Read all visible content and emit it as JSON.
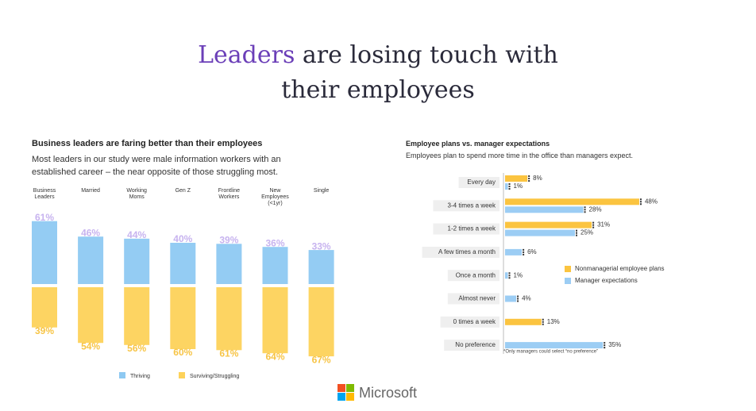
{
  "header": {
    "highlight": "Leaders",
    "line1": "are losing touch with",
    "line2": "their employees"
  },
  "chart_data": [
    {
      "type": "stacked-column",
      "title": "Business leaders are faring better than their employees",
      "subtitle": "Most leaders in our study were male information workers with an established career – the near opposite of those struggling most.",
      "categories": [
        "Business Leaders",
        "Married",
        "Working Moms",
        "Gen Z",
        "Frontline Workers",
        "New Employees (<1yr)",
        "Single"
      ],
      "series": [
        {
          "name": "Thriving",
          "color": "#8ec9f2",
          "label_color": "#c7b3ef",
          "values": [
            61,
            46,
            44,
            40,
            39,
            36,
            33
          ],
          "value_labels": [
            "61%",
            "46%",
            "44%",
            "40%",
            "39%",
            "36%",
            "33%"
          ]
        },
        {
          "name": "Surviving/Struggling",
          "color": "#fdd25a",
          "label_color": "#f7c445",
          "values": [
            39,
            54,
            56,
            60,
            61,
            64,
            67
          ],
          "value_labels": [
            "39%",
            "54%",
            "56%",
            "60%",
            "61%",
            "64%",
            "67%"
          ]
        }
      ]
    },
    {
      "type": "grouped-hbar",
      "title": "Employee plans vs. manager expectations",
      "subtitle": "Employees plan to spend more time in the office than managers expect.",
      "categories": [
        "Every day",
        "3-4 times a week",
        "1-2 times a week",
        "A few times a month",
        "Once a month",
        "Almost never",
        "0 times a week",
        "No preference"
      ],
      "series": [
        {
          "name": "Nonmanagerial employee plans",
          "color": "#fbc440",
          "values": [
            8,
            48,
            31,
            null,
            null,
            null,
            13,
            null
          ],
          "value_labels": [
            "8%",
            "48%",
            "31%",
            null,
            null,
            null,
            "13%",
            null
          ]
        },
        {
          "name": "Manager expectations",
          "color": "#9ccdf4",
          "values": [
            1,
            28,
            25,
            6,
            1,
            4,
            null,
            35
          ],
          "value_labels": [
            "1%",
            "28%",
            "25%",
            "6%",
            "1%",
            "4%",
            null,
            "35%"
          ]
        }
      ],
      "note": "*Only managers could select “no preference”",
      "legend": "right"
    }
  ],
  "footer": {
    "brand": "Microsoft"
  }
}
